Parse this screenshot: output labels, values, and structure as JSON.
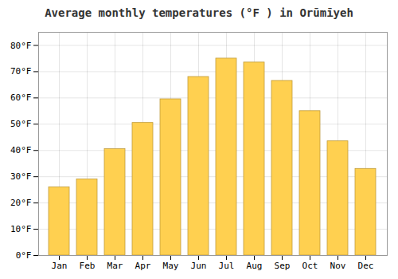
{
  "chart_data": {
    "type": "bar",
    "title": "Average monthly temperatures (°F ) in Orūmīyeh",
    "categories": [
      "Jan",
      "Feb",
      "Mar",
      "Apr",
      "May",
      "Jun",
      "Jul",
      "Aug",
      "Sep",
      "Oct",
      "Nov",
      "Dec"
    ],
    "values": [
      26,
      29,
      40.5,
      50.5,
      59.5,
      68,
      75,
      73.5,
      66.5,
      55,
      43.5,
      33
    ],
    "color": "#FFD050",
    "ylim": [
      0,
      85
    ],
    "yticks": [
      {
        "value": 0,
        "label": "0°F"
      },
      {
        "value": 10,
        "label": "10°F"
      },
      {
        "value": 20,
        "label": "20°F"
      },
      {
        "value": 30,
        "label": "30°F"
      },
      {
        "value": 40,
        "label": "40°F"
      },
      {
        "value": 50,
        "label": "50°F"
      },
      {
        "value": 60,
        "label": "60°F"
      },
      {
        "value": 70,
        "label": "70°F"
      },
      {
        "value": 80,
        "label": "80°F"
      }
    ],
    "grid": true
  }
}
